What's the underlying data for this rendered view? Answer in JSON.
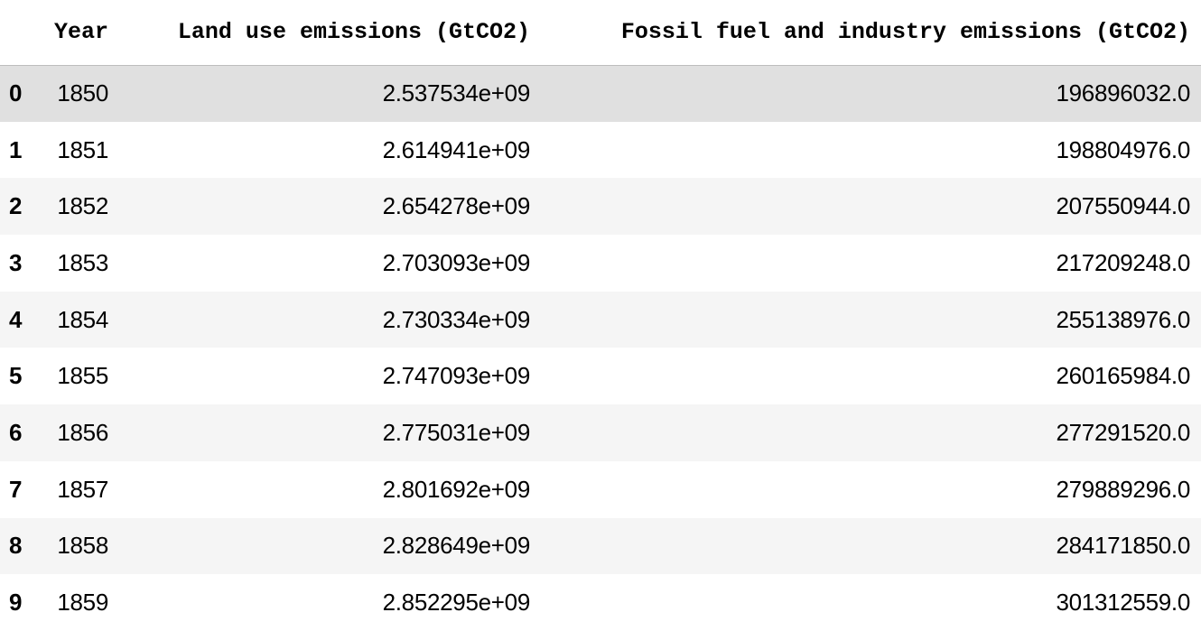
{
  "table": {
    "index_header": "",
    "columns": [
      "Year",
      "Land use emissions (GtCO2)",
      "Fossil fuel and industry emissions (GtCO2)"
    ],
    "rows": [
      {
        "index": "0",
        "year": "1850",
        "land": "2.537534e+09",
        "fossil": "196896032.0"
      },
      {
        "index": "1",
        "year": "1851",
        "land": "2.614941e+09",
        "fossil": "198804976.0"
      },
      {
        "index": "2",
        "year": "1852",
        "land": "2.654278e+09",
        "fossil": "207550944.0"
      },
      {
        "index": "3",
        "year": "1853",
        "land": "2.703093e+09",
        "fossil": "217209248.0"
      },
      {
        "index": "4",
        "year": "1854",
        "land": "2.730334e+09",
        "fossil": "255138976.0"
      },
      {
        "index": "5",
        "year": "1855",
        "land": "2.747093e+09",
        "fossil": "260165984.0"
      },
      {
        "index": "6",
        "year": "1856",
        "land": "2.775031e+09",
        "fossil": "277291520.0"
      },
      {
        "index": "7",
        "year": "1857",
        "land": "2.801692e+09",
        "fossil": "279889296.0"
      },
      {
        "index": "8",
        "year": "1858",
        "land": "2.828649e+09",
        "fossil": "284171850.0"
      },
      {
        "index": "9",
        "year": "1859",
        "land": "2.852295e+09",
        "fossil": "301312559.0"
      }
    ],
    "hovered_row_index": 0,
    "colors": {
      "row_stripe": "#f5f5f5",
      "row_hover": "#e0e0e0",
      "header_border": "#bdbdbd"
    }
  }
}
